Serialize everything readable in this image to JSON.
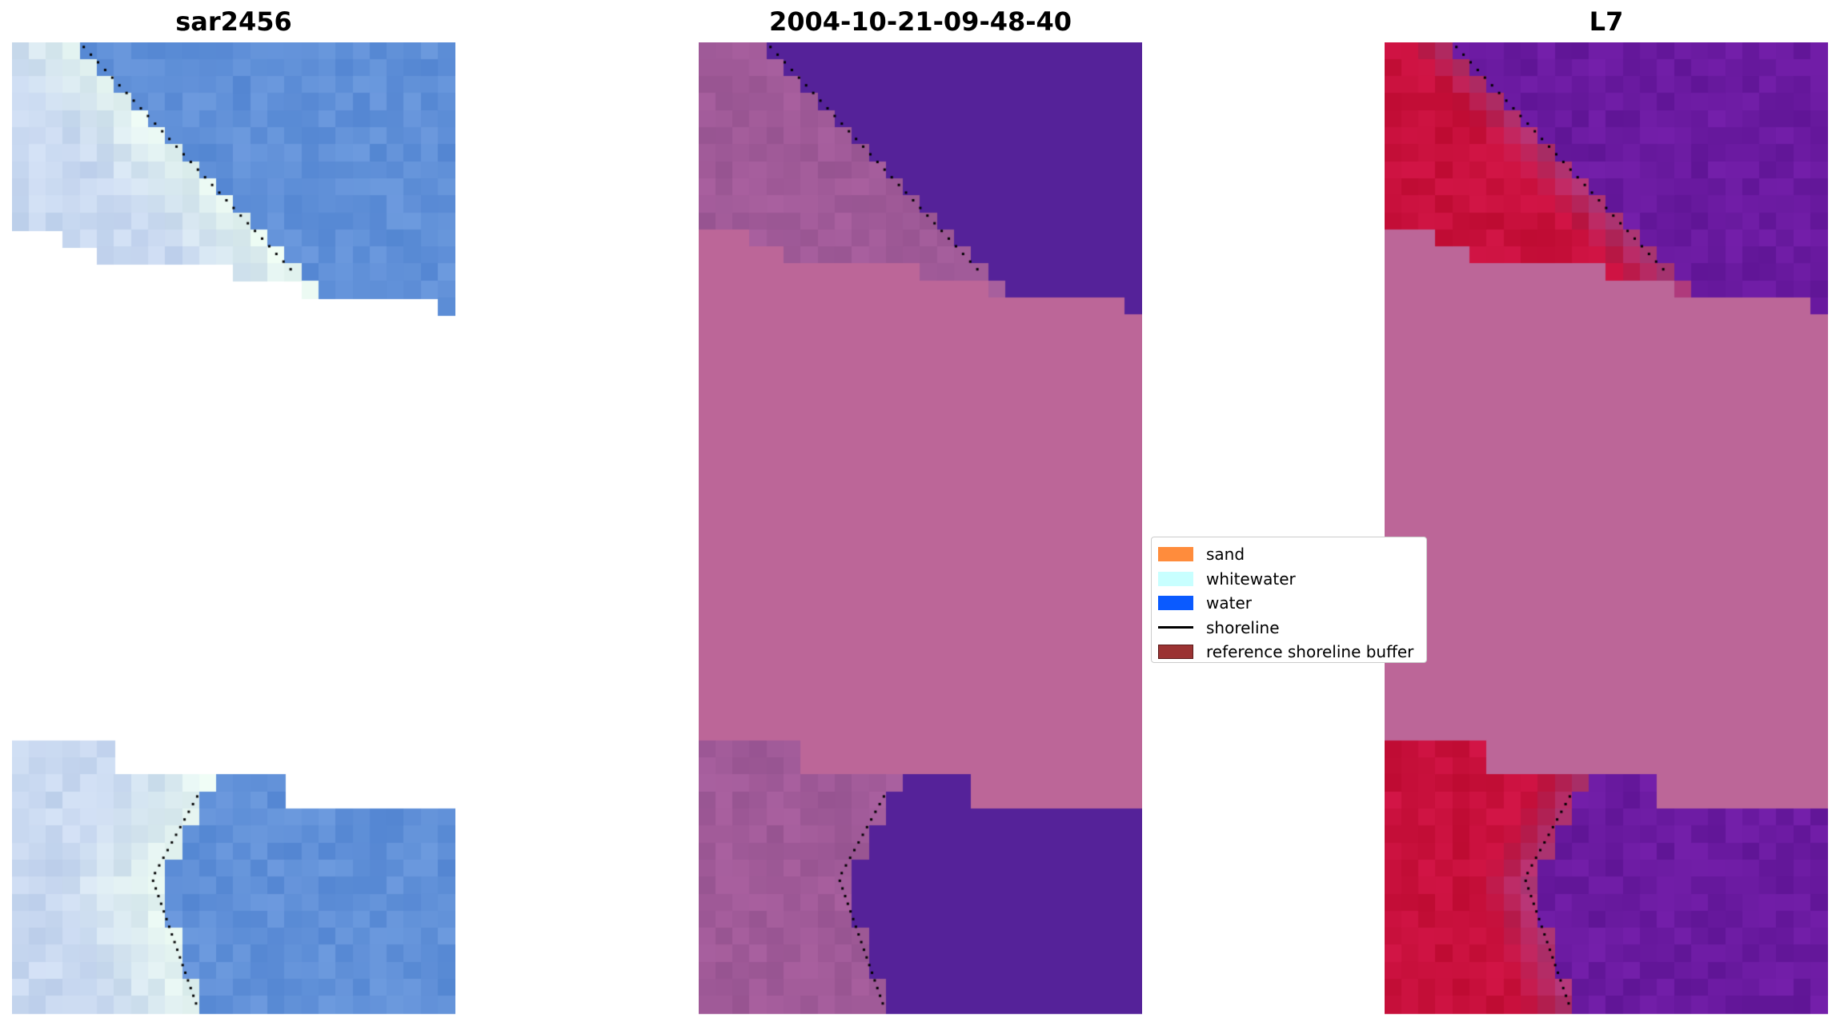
{
  "panels": [
    {
      "title": "sar2456"
    },
    {
      "title": "2004-10-21-09-48-40"
    },
    {
      "title": "L7"
    }
  ],
  "legend": {
    "items": [
      {
        "label": "sand",
        "color": "#ff8c3c",
        "kind": "patch"
      },
      {
        "label": "whitewater",
        "color": "#c8ffff",
        "kind": "patch"
      },
      {
        "label": "water",
        "color": "#0a5aff",
        "kind": "patch"
      },
      {
        "label": "shoreline",
        "color": "#000000",
        "kind": "line"
      },
      {
        "label": "reference shoreline buffer",
        "color": "#9b3333",
        "kind": "patch"
      }
    ]
  },
  "colors": {
    "rgb_water": "#6090d8",
    "rgb_beach": "#c8d8f0",
    "classified_water": "#552299",
    "classified_sand": "#a05a98",
    "classified_nodata": "#bc6698",
    "mndwi_sand": "#c8103c",
    "mndwi_water": "#6a1aa0",
    "mndwi_nodata": "#bc6698"
  }
}
